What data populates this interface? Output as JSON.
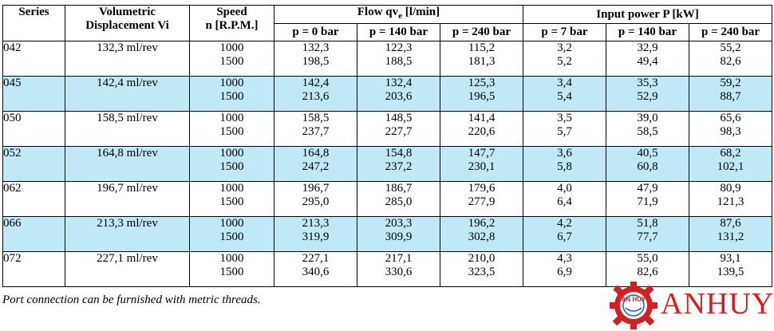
{
  "headers": {
    "series": "Series",
    "displacement_line1": "Volumetric",
    "displacement_line2": "Displacement Vi",
    "speed_line1": "Speed",
    "speed_line2": "n [R.P.M.]",
    "flow_group_prefix": "Flow qv",
    "flow_group_sub": "e",
    "flow_group_suffix": " [l/min]",
    "power_group": "Input power P [kW]",
    "flow_cols": [
      "p = 0 bar",
      "p = 140 bar",
      "p = 240 bar"
    ],
    "power_cols": [
      "p = 7 bar",
      "p = 140 bar",
      "p = 240 bar"
    ]
  },
  "rows": [
    {
      "series": "042",
      "disp": "132,3 ml/rev",
      "speed": [
        "1000",
        "1500"
      ],
      "flow": [
        [
          "132,3",
          "198,5"
        ],
        [
          "122,3",
          "188,5"
        ],
        [
          "115,2",
          "181,3"
        ]
      ],
      "power": [
        [
          "3,2",
          "5,2"
        ],
        [
          "32,9",
          "49,4"
        ],
        [
          "55,2",
          "82,6"
        ]
      ]
    },
    {
      "series": "045",
      "disp": "142,4 ml/rev",
      "speed": [
        "1000",
        "1500"
      ],
      "flow": [
        [
          "142,4",
          "213,6"
        ],
        [
          "132,4",
          "203,6"
        ],
        [
          "125,3",
          "196,5"
        ]
      ],
      "power": [
        [
          "3,4",
          "5,4"
        ],
        [
          "35,3",
          "52,9"
        ],
        [
          "59,2",
          "88,7"
        ]
      ]
    },
    {
      "series": "050",
      "disp": "158,5 ml/rev",
      "speed": [
        "1000",
        "1500"
      ],
      "flow": [
        [
          "158,5",
          "237,7"
        ],
        [
          "148,5",
          "227,7"
        ],
        [
          "141,4",
          "220,6"
        ]
      ],
      "power": [
        [
          "3,5",
          "5,7"
        ],
        [
          "39,0",
          "58,5"
        ],
        [
          "65,6",
          "98,3"
        ]
      ]
    },
    {
      "series": "052",
      "disp": "164,8 ml/rev",
      "speed": [
        "1000",
        "1500"
      ],
      "flow": [
        [
          "164,8",
          "247,2"
        ],
        [
          "154,8",
          "237,2"
        ],
        [
          "147,7",
          "230,1"
        ]
      ],
      "power": [
        [
          "3,6",
          "5,8"
        ],
        [
          "40,5",
          "60,8"
        ],
        [
          "68,2",
          "102,1"
        ]
      ]
    },
    {
      "series": "062",
      "disp": "196,7 ml/rev",
      "speed": [
        "1000",
        "1500"
      ],
      "flow": [
        [
          "196,7",
          "295,0"
        ],
        [
          "186,7",
          "285,0"
        ],
        [
          "179,6",
          "277,9"
        ]
      ],
      "power": [
        [
          "4,0",
          "6,4"
        ],
        [
          "47,9",
          "71,9"
        ],
        [
          "80,9",
          "121,3"
        ]
      ]
    },
    {
      "series": "066",
      "disp": "213,3 ml/rev",
      "speed": [
        "1000",
        "1500"
      ],
      "flow": [
        [
          "213,3",
          "319,9"
        ],
        [
          "203,3",
          "309,9"
        ],
        [
          "196,2",
          "302,8"
        ]
      ],
      "power": [
        [
          "4,2",
          "6,7"
        ],
        [
          "51,8",
          "77,7"
        ],
        [
          "87,6",
          "131,2"
        ]
      ]
    },
    {
      "series": "072",
      "disp": "227,1 ml/rev",
      "speed": [
        "1000",
        "1500"
      ],
      "flow": [
        [
          "227,1",
          "340,6"
        ],
        [
          "217,1",
          "330,6"
        ],
        [
          "210,0",
          "323,5"
        ]
      ],
      "power": [
        [
          "4,3",
          "6,9"
        ],
        [
          "55,0",
          "82,6"
        ],
        [
          "93,1",
          "139,5"
        ]
      ]
    }
  ],
  "note": "Port connection can be furnished with metric threads.",
  "logo": {
    "text": "ANHUY",
    "badge_text": "AN HUY",
    "color": "#d21f1f"
  },
  "colors": {
    "shaded_row": "#bfe9f5"
  }
}
